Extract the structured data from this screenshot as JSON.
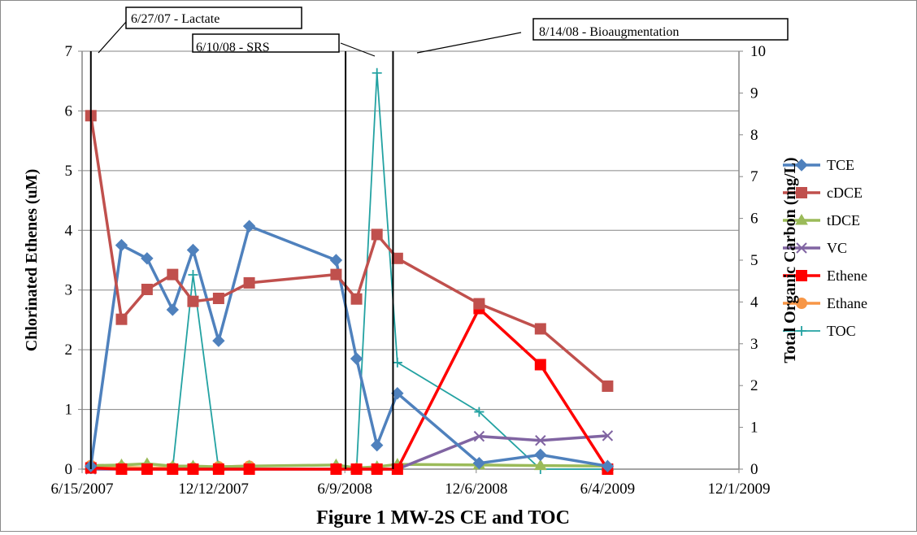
{
  "chart_data": {
    "type": "line",
    "title": "Figure 1 MW-2S CE and TOC",
    "ylabel": "Chlorinated Ethenes (uM)",
    "y2label": "Total Organic Carbon (mg/L)",
    "x_axis": {
      "type": "date",
      "range": [
        "2007-06-15",
        "2009-12-01"
      ],
      "ticks": [
        {
          "date": "2007-06-15",
          "label": "6/15/2007"
        },
        {
          "date": "2007-12-12",
          "label": "12/12/2007"
        },
        {
          "date": "2008-06-09",
          "label": "6/9/2008"
        },
        {
          "date": "2008-12-06",
          "label": "12/6/2008"
        },
        {
          "date": "2009-06-04",
          "label": "6/4/2009"
        },
        {
          "date": "2009-12-01",
          "label": "12/1/2009"
        }
      ]
    },
    "ylim": [
      0,
      7
    ],
    "y_ticks": [
      "0",
      "1",
      "2",
      "3",
      "4",
      "5",
      "6",
      "7"
    ],
    "y2lim": [
      0,
      10
    ],
    "y2_ticks": [
      "0",
      "1",
      "2",
      "3",
      "4",
      "5",
      "6",
      "7",
      "8",
      "9",
      "10"
    ],
    "grid": "horizontal",
    "legend_position": "right",
    "annotations": [
      {
        "label": "6/27/07 - Lactate",
        "date": "2007-06-27"
      },
      {
        "label": "6/10/08 - SRS",
        "date": "2008-06-10"
      },
      {
        "label": "8/14/08 - Bioaugmentation",
        "date": "2008-08-14"
      }
    ],
    "series": [
      {
        "name": "TCE",
        "axis": "left",
        "color": "#4f81bd",
        "marker": "diamond",
        "x": [
          "2007-06-27",
          "2007-08-08",
          "2007-09-12",
          "2007-10-17",
          "2007-11-14",
          "2007-12-19",
          "2008-01-30",
          "2008-05-28",
          "2008-06-25",
          "2008-07-23",
          "2008-08-20",
          "2008-12-10",
          "2009-03-04",
          "2009-06-04"
        ],
        "y": [
          0.05,
          3.75,
          3.53,
          2.67,
          3.67,
          2.15,
          4.07,
          3.5,
          1.85,
          0.4,
          1.27,
          0.1,
          0.24,
          0.05
        ]
      },
      {
        "name": "cDCE",
        "axis": "left",
        "color": "#c0504d",
        "marker": "square",
        "x": [
          "2007-06-27",
          "2007-08-08",
          "2007-09-12",
          "2007-10-17",
          "2007-11-14",
          "2007-12-19",
          "2008-01-30",
          "2008-05-28",
          "2008-06-25",
          "2008-07-23",
          "2008-08-20",
          "2008-12-10",
          "2009-03-04",
          "2009-06-04"
        ],
        "y": [
          5.92,
          2.51,
          3.01,
          3.26,
          2.81,
          2.86,
          3.12,
          3.26,
          2.85,
          3.93,
          3.53,
          2.77,
          2.35,
          1.39
        ]
      },
      {
        "name": "tDCE",
        "axis": "left",
        "color": "#9bbb59",
        "marker": "triangle",
        "x": [
          "2007-06-27",
          "2007-08-08",
          "2007-09-12",
          "2007-10-17",
          "2007-11-14",
          "2007-12-19",
          "2008-01-30",
          "2008-05-28",
          "2008-06-25",
          "2008-07-23",
          "2008-08-20",
          "2008-12-10",
          "2009-03-04",
          "2009-06-04"
        ],
        "y": [
          0.06,
          0.07,
          0.09,
          0.05,
          0.05,
          0.04,
          0.05,
          0.07,
          0.02,
          0.04,
          0.08,
          0.07,
          0.06,
          0.05
        ]
      },
      {
        "name": "VC",
        "axis": "left",
        "color": "#8064a2",
        "marker": "x",
        "x": [
          "2007-06-27",
          "2007-08-08",
          "2007-09-12",
          "2007-10-17",
          "2007-11-14",
          "2007-12-19",
          "2008-01-30",
          "2008-05-28",
          "2008-06-25",
          "2008-07-23",
          "2008-08-20",
          "2008-12-10",
          "2009-03-04",
          "2009-06-04"
        ],
        "y": [
          0.0,
          0.0,
          0.0,
          0.0,
          0.0,
          0.0,
          0.0,
          0.0,
          0.0,
          0.0,
          0.0,
          0.55,
          0.48,
          0.56
        ]
      },
      {
        "name": "Ethene",
        "axis": "left",
        "color": "#ff0000",
        "marker": "square",
        "x": [
          "2007-06-27",
          "2007-08-08",
          "2007-09-12",
          "2007-10-17",
          "2007-11-14",
          "2007-12-19",
          "2008-01-30",
          "2008-05-28",
          "2008-06-25",
          "2008-07-23",
          "2008-08-20",
          "2008-12-10",
          "2009-03-04",
          "2009-06-04"
        ],
        "y": [
          0.02,
          0.0,
          0.0,
          0.0,
          0.0,
          0.0,
          0.0,
          0.0,
          0.0,
          0.0,
          0.0,
          2.69,
          1.75,
          0.0
        ]
      },
      {
        "name": "Ethane",
        "axis": "left",
        "color": "#f79646",
        "marker": "circle",
        "x": [
          "2007-06-27",
          "2007-08-08",
          "2007-09-12",
          "2007-10-17",
          "2007-11-14",
          "2007-12-19",
          "2008-01-30"
        ],
        "y": [
          0.06,
          0.03,
          0.02,
          0.02,
          0.02,
          0.04,
          0.05
        ]
      },
      {
        "name": "TOC",
        "axis": "right",
        "color": "#23a2a2",
        "marker": "plus",
        "x": [
          "2007-06-27",
          "2007-08-08",
          "2007-09-12",
          "2007-10-17",
          "2007-11-14",
          "2007-12-19",
          "2008-01-30",
          "2008-05-28",
          "2008-06-25",
          "2008-07-23",
          "2008-08-20",
          "2008-12-10",
          "2009-03-04",
          "2009-06-04"
        ],
        "y": [
          0.0,
          0.0,
          0.0,
          0.0,
          4.65,
          0.0,
          0.0,
          0.0,
          0.0,
          9.48,
          2.55,
          1.37,
          0.0,
          0.0
        ]
      }
    ]
  }
}
